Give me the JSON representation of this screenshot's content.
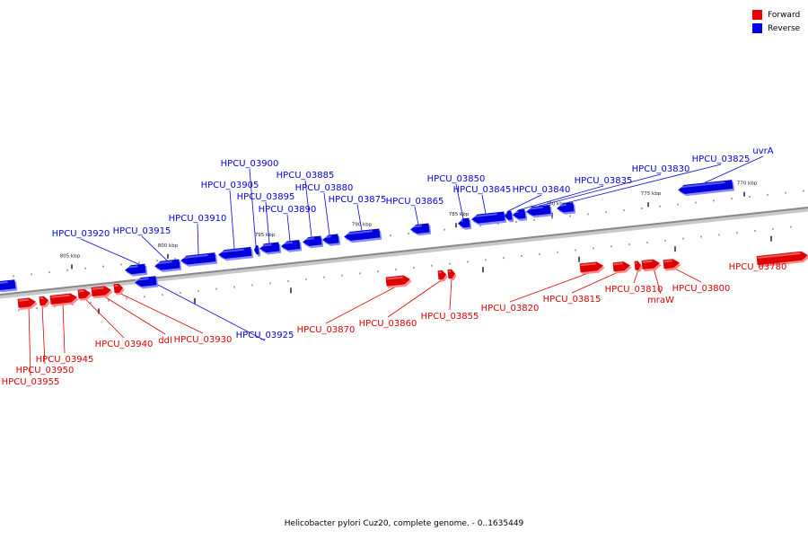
{
  "legend": {
    "forward_label": "Forward",
    "reverse_label": "Reverse",
    "forward_color": "#ee0000",
    "reverse_color": "#0000ee"
  },
  "footer": "Helicobacter pylori Cuz20, complete genome. - 0..1635449",
  "colors": {
    "forward": "#dd0000",
    "reverse": "#0000dd",
    "backbone": "#888888"
  },
  "scale_labels": [
    "805 kbp",
    "800 kbp",
    "795 kbp",
    "790 kbp",
    "785 kbp",
    "780 kbp",
    "775 kbp",
    "770 kbp"
  ],
  "reverse_genes": [
    "HPCU_03925",
    "HPCU_03920",
    "HPCU_03915",
    "HPCU_03910",
    "HPCU_03905",
    "HPCU_03900",
    "HPCU_03895",
    "HPCU_03890",
    "HPCU_03885",
    "HPCU_03880",
    "HPCU_03875",
    "HPCU_03865",
    "HPCU_03850",
    "HPCU_03845",
    "HPCU_03840",
    "HPCU_03835",
    "HPCU_03830",
    "HPCU_03825",
    "uvrA"
  ],
  "forward_genes": [
    "HPCU_03955",
    "HPCU_03950",
    "HPCU_03945",
    "HPCU_03940",
    "ddl",
    "HPCU_03930",
    "HPCU_03870",
    "HPCU_03860",
    "HPCU_03855",
    "HPCU_03820",
    "HPCU_03815",
    "HPCU_03810",
    "mraW",
    "HPCU_03800",
    "HPCU_03780"
  ]
}
